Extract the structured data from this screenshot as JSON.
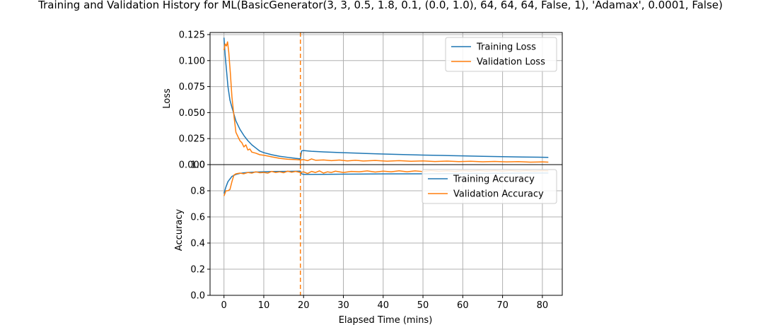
{
  "chart_data": {
    "type": "line",
    "title": "Training and Validation History for ML(BasicGenerator(3, 3, 0.5, 1.8, 0.1, (0.0, 1.0), 64, 64, 64, False, 1), 'Adamax', 0.0001, False)",
    "xlabel": "Elapsed Time (mins)",
    "xlim": [
      -3.5,
      85
    ],
    "xticks": [
      0,
      10,
      20,
      30,
      40,
      50,
      60,
      70,
      80
    ],
    "grid": true,
    "event_line": {
      "x": 19.2,
      "style": "dashed",
      "color": "#ff7f0e"
    },
    "colors": {
      "training": "#1f77b4",
      "validation": "#ff7f0e"
    },
    "panels": [
      {
        "id": "loss",
        "ylabel": "Loss",
        "ylim": [
          0,
          0.127
        ],
        "yticks": [
          0.0,
          0.025,
          0.05,
          0.075,
          0.1,
          0.125
        ],
        "ytick_labels": [
          "0.000",
          "0.025",
          "0.050",
          "0.075",
          "0.100",
          "0.125"
        ],
        "legend_position": "upper right",
        "series": [
          {
            "name": "Training Loss",
            "color": "#1f77b4",
            "points": [
              [
                0,
                0.122
              ],
              [
                0.3,
                0.105
              ],
              [
                0.6,
                0.092
              ],
              [
                1,
                0.075
              ],
              [
                1.5,
                0.062
              ],
              [
                2,
                0.055
              ],
              [
                3,
                0.042
              ],
              [
                4,
                0.034
              ],
              [
                5,
                0.028
              ],
              [
                6,
                0.023
              ],
              [
                7,
                0.019
              ],
              [
                8,
                0.016
              ],
              [
                9,
                0.013
              ],
              [
                10,
                0.0115
              ],
              [
                12,
                0.0095
              ],
              [
                14,
                0.008
              ],
              [
                16,
                0.007
              ],
              [
                18,
                0.006
              ],
              [
                19.2,
                0.0055
              ],
              [
                19.5,
                0.0132
              ],
              [
                20,
                0.0135
              ],
              [
                22,
                0.0128
              ],
              [
                25,
                0.0122
              ],
              [
                30,
                0.0115
              ],
              [
                35,
                0.0108
              ],
              [
                40,
                0.0102
              ],
              [
                45,
                0.0097
              ],
              [
                50,
                0.0092
              ],
              [
                55,
                0.0088
              ],
              [
                60,
                0.0084
              ],
              [
                65,
                0.008
              ],
              [
                70,
                0.0076
              ],
              [
                75,
                0.0073
              ],
              [
                81.5,
                0.007
              ]
            ]
          },
          {
            "name": "Validation Loss",
            "color": "#ff7f0e",
            "points": [
              [
                0,
                0.11
              ],
              [
                0.3,
                0.116
              ],
              [
                0.6,
                0.114
              ],
              [
                0.9,
                0.118
              ],
              [
                1.2,
                0.108
              ],
              [
                1.6,
                0.088
              ],
              [
                2,
                0.065
              ],
              [
                2.5,
                0.047
              ],
              [
                3,
                0.031
              ],
              [
                3.5,
                0.027
              ],
              [
                4,
                0.023
              ],
              [
                4.5,
                0.021
              ],
              [
                5,
                0.017
              ],
              [
                5.5,
                0.019
              ],
              [
                6,
                0.014
              ],
              [
                6.5,
                0.015
              ],
              [
                7,
                0.012
              ],
              [
                8,
                0.011
              ],
              [
                9,
                0.0095
              ],
              [
                10,
                0.009
              ],
              [
                12,
                0.0075
              ],
              [
                14,
                0.006
              ],
              [
                16,
                0.0052
              ],
              [
                18,
                0.0048
              ],
              [
                19.2,
                0.0045
              ],
              [
                20,
                0.0048
              ],
              [
                21,
                0.0038
              ],
              [
                22,
                0.0055
              ],
              [
                23,
                0.0042
              ],
              [
                25,
                0.0045
              ],
              [
                27,
                0.0038
              ],
              [
                29,
                0.0044
              ],
              [
                31,
                0.0036
              ],
              [
                33,
                0.0042
              ],
              [
                35,
                0.0035
              ],
              [
                38,
                0.004
              ],
              [
                41,
                0.0033
              ],
              [
                44,
                0.0038
              ],
              [
                47,
                0.0032
              ],
              [
                50,
                0.0036
              ],
              [
                53,
                0.003
              ],
              [
                56,
                0.0034
              ],
              [
                59,
                0.0029
              ],
              [
                62,
                0.0032
              ],
              [
                65,
                0.0027
              ],
              [
                68,
                0.0031
              ],
              [
                71,
                0.0026
              ],
              [
                74,
                0.0029
              ],
              [
                77,
                0.0024
              ],
              [
                80,
                0.0026
              ],
              [
                81.5,
                0.0024
              ]
            ]
          }
        ]
      },
      {
        "id": "accuracy",
        "ylabel": "Accuracy",
        "ylim": [
          0,
          1.0
        ],
        "yticks": [
          0.0,
          0.2,
          0.4,
          0.6,
          0.8,
          1.0
        ],
        "ytick_labels": [
          "0.0",
          "0.2",
          "0.4",
          "0.6",
          "0.8",
          "1.0"
        ],
        "legend_position": "upper right",
        "series": [
          {
            "name": "Training Accuracy",
            "color": "#1f77b4",
            "points": [
              [
                0,
                0.78
              ],
              [
                0.5,
                0.83
              ],
              [
                1,
                0.87
              ],
              [
                1.5,
                0.89
              ],
              [
                2,
                0.91
              ],
              [
                3,
                0.925
              ],
              [
                4,
                0.933
              ],
              [
                5,
                0.937
              ],
              [
                6,
                0.94
              ],
              [
                8,
                0.943
              ],
              [
                10,
                0.945
              ],
              [
                12,
                0.947
              ],
              [
                15,
                0.948
              ],
              [
                19.2,
                0.95
              ],
              [
                19.5,
                0.93
              ],
              [
                20,
                0.925
              ],
              [
                25,
                0.926
              ],
              [
                30,
                0.927
              ],
              [
                40,
                0.929
              ],
              [
                50,
                0.93
              ],
              [
                60,
                0.932
              ],
              [
                70,
                0.934
              ],
              [
                81.5,
                0.936
              ]
            ]
          },
          {
            "name": "Validation Accuracy",
            "color": "#ff7f0e",
            "points": [
              [
                0,
                0.76
              ],
              [
                0.5,
                0.8
              ],
              [
                1,
                0.8
              ],
              [
                1.5,
                0.81
              ],
              [
                2,
                0.87
              ],
              [
                2.5,
                0.92
              ],
              [
                3,
                0.93
              ],
              [
                4,
                0.935
              ],
              [
                5,
                0.93
              ],
              [
                6,
                0.94
              ],
              [
                7,
                0.935
              ],
              [
                8,
                0.945
              ],
              [
                9,
                0.938
              ],
              [
                10,
                0.94
              ],
              [
                11,
                0.935
              ],
              [
                12,
                0.948
              ],
              [
                13,
                0.94
              ],
              [
                14,
                0.945
              ],
              [
                15,
                0.938
              ],
              [
                16,
                0.95
              ],
              [
                17,
                0.942
              ],
              [
                18,
                0.948
              ],
              [
                19.2,
                0.94
              ],
              [
                20,
                0.945
              ],
              [
                21,
                0.932
              ],
              [
                22,
                0.948
              ],
              [
                23,
                0.94
              ],
              [
                24,
                0.952
              ],
              [
                25,
                0.935
              ],
              [
                26,
                0.945
              ],
              [
                27,
                0.94
              ],
              [
                28,
                0.95
              ],
              [
                30,
                0.94
              ],
              [
                32,
                0.948
              ],
              [
                34,
                0.945
              ],
              [
                36,
                0.952
              ],
              [
                38,
                0.943
              ],
              [
                40,
                0.95
              ],
              [
                42,
                0.945
              ],
              [
                44,
                0.953
              ],
              [
                46,
                0.945
              ],
              [
                48,
                0.952
              ],
              [
                50,
                0.947
              ],
              [
                52,
                0.955
              ],
              [
                54,
                0.948
              ],
              [
                56,
                0.953
              ],
              [
                58,
                0.948
              ],
              [
                60,
                0.954
              ],
              [
                62,
                0.95
              ],
              [
                64,
                0.955
              ],
              [
                66,
                0.95
              ],
              [
                68,
                0.954
              ],
              [
                70,
                0.95
              ],
              [
                72,
                0.955
              ],
              [
                74,
                0.95
              ],
              [
                76,
                0.954
              ],
              [
                78,
                0.95
              ],
              [
                80,
                0.954
              ],
              [
                81.5,
                0.952
              ]
            ]
          }
        ]
      }
    ]
  }
}
